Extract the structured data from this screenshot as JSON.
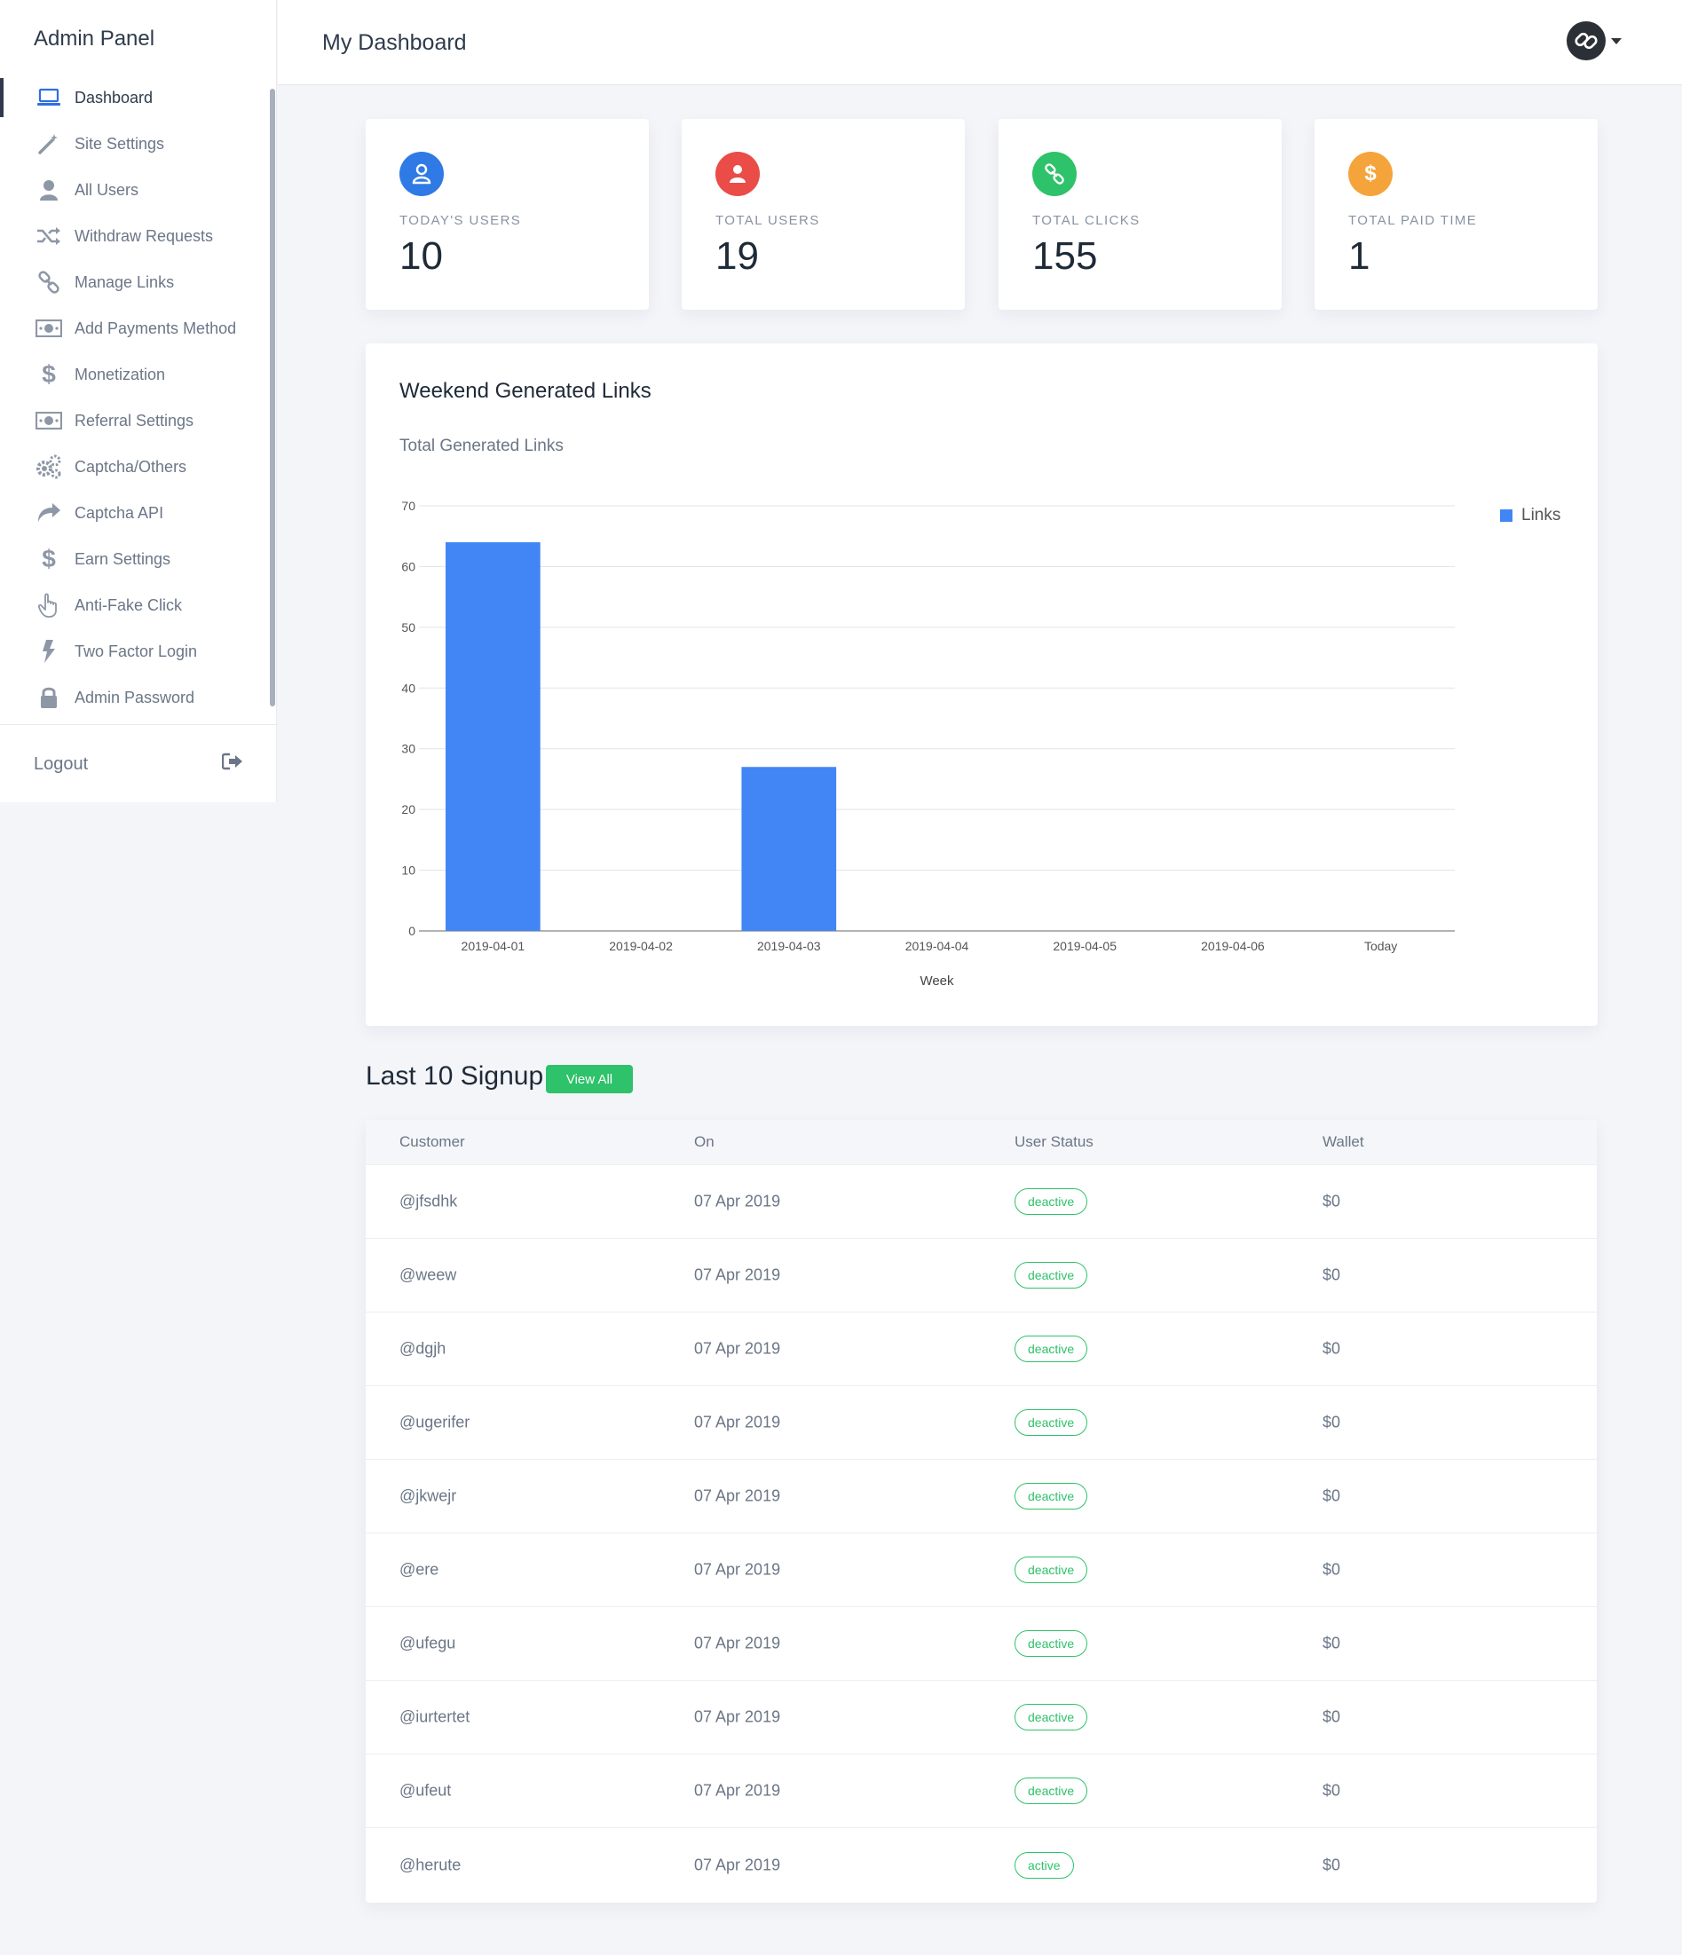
{
  "sidebar": {
    "brand": "Admin Panel",
    "items": [
      {
        "label": "Dashboard",
        "icon": "laptop-icon",
        "active": true
      },
      {
        "label": "Site Settings",
        "icon": "magic-wand-icon"
      },
      {
        "label": "All Users",
        "icon": "user-icon"
      },
      {
        "label": "Withdraw Requests",
        "icon": "shuffle-icon"
      },
      {
        "label": "Manage Links",
        "icon": "link-icon"
      },
      {
        "label": "Add Payments Method",
        "icon": "money-bill-icon"
      },
      {
        "label": "Monetization",
        "icon": "dollar-icon"
      },
      {
        "label": "Referral Settings",
        "icon": "money-bill-icon"
      },
      {
        "label": "Captcha/Others",
        "icon": "gears-icon"
      },
      {
        "label": "Captcha API",
        "icon": "share-arrow-icon"
      },
      {
        "label": "Earn Settings",
        "icon": "dollar-icon"
      },
      {
        "label": "Anti-Fake Click",
        "icon": "pointer-hand-icon"
      },
      {
        "label": "Two Factor Login",
        "icon": "bolt-icon"
      },
      {
        "label": "Admin Password",
        "icon": "lock-icon"
      }
    ],
    "logout": "Logout"
  },
  "header": {
    "title": "My Dashboard"
  },
  "stats": [
    {
      "label": "TODAY'S USERS",
      "value": "10",
      "icon": "user-icon",
      "color": "#2f7ae5"
    },
    {
      "label": "TOTAL USERS",
      "value": "19",
      "icon": "user-icon",
      "color": "#ea4c48"
    },
    {
      "label": "TOTAL CLICKS",
      "value": "155",
      "icon": "link-icon",
      "color": "#2ec26a"
    },
    {
      "label": "TOTAL PAID TIME",
      "value": "1",
      "icon": "dollar-icon",
      "color": "#f4a43b"
    }
  ],
  "chart_card": {
    "title": "Weekend Generated Links",
    "subtitle": "Total Generated Links",
    "legend": "Links"
  },
  "chart_data": {
    "type": "bar",
    "categories": [
      "2019-04-01",
      "2019-04-02",
      "2019-04-03",
      "2019-04-04",
      "2019-04-05",
      "2019-04-06",
      "Today"
    ],
    "series": [
      {
        "name": "Links",
        "values": [
          64,
          0,
          27,
          0,
          0,
          0,
          0
        ],
        "color": "#4285f4"
      }
    ],
    "xlabel": "Week",
    "ylabel": "",
    "ylim": [
      0,
      70
    ],
    "yticks": [
      "0",
      "10",
      "20",
      "30",
      "40",
      "50",
      "60",
      "70"
    ],
    "grid": true,
    "legend_position": "top-right"
  },
  "signup": {
    "title": "Last 10 Signup",
    "view_all": "View All",
    "columns": [
      "Customer",
      "On",
      "User Status",
      "Wallet"
    ],
    "rows": [
      {
        "customer": "@jfsdhk",
        "on": "07 Apr 2019",
        "status": "deactive",
        "wallet": "$0"
      },
      {
        "customer": "@weew",
        "on": "07 Apr 2019",
        "status": "deactive",
        "wallet": "$0"
      },
      {
        "customer": "@dgjh",
        "on": "07 Apr 2019",
        "status": "deactive",
        "wallet": "$0"
      },
      {
        "customer": "@ugerifer",
        "on": "07 Apr 2019",
        "status": "deactive",
        "wallet": "$0"
      },
      {
        "customer": "@jkwejr",
        "on": "07 Apr 2019",
        "status": "deactive",
        "wallet": "$0"
      },
      {
        "customer": "@ere",
        "on": "07 Apr 2019",
        "status": "deactive",
        "wallet": "$0"
      },
      {
        "customer": "@ufegu",
        "on": "07 Apr 2019",
        "status": "deactive",
        "wallet": "$0"
      },
      {
        "customer": "@iurtertet",
        "on": "07 Apr 2019",
        "status": "deactive",
        "wallet": "$0"
      },
      {
        "customer": "@ufeut",
        "on": "07 Apr 2019",
        "status": "deactive",
        "wallet": "$0"
      },
      {
        "customer": "@herute",
        "on": "07 Apr 2019",
        "status": "active",
        "wallet": "$0"
      }
    ]
  }
}
